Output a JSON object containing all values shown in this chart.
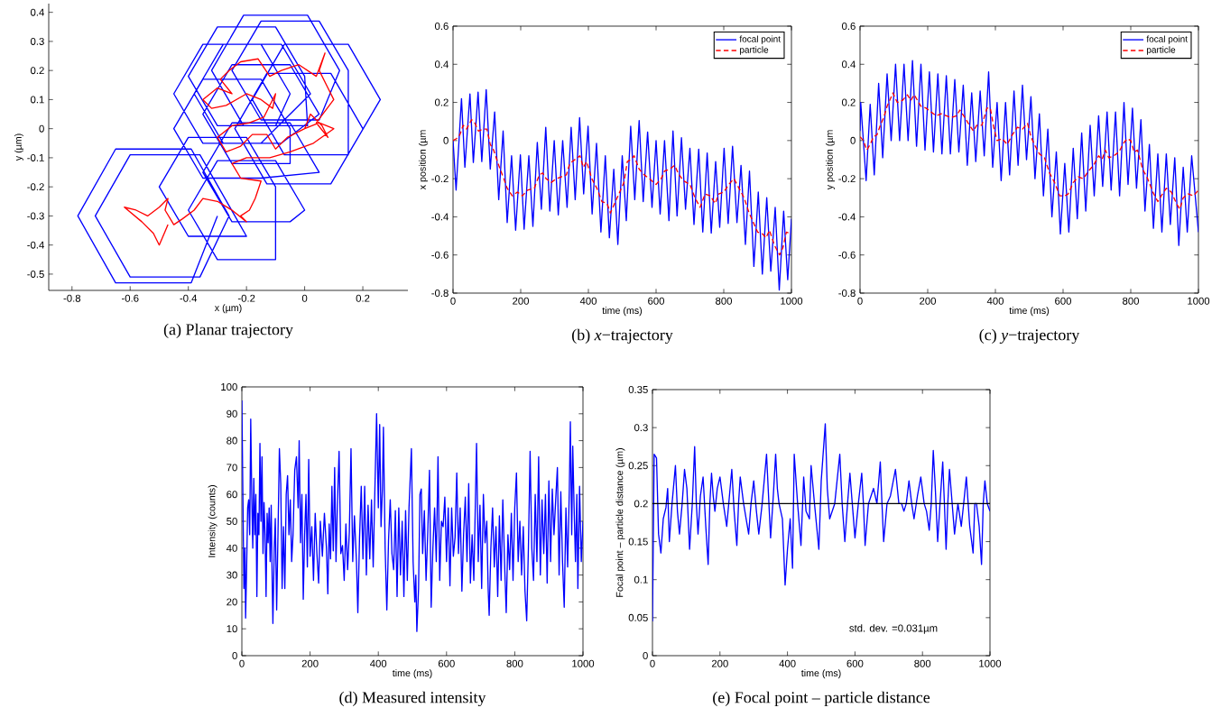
{
  "chart_data": [
    {
      "type": "line",
      "title": "(a) Planar trajectory",
      "xlabel": "x (µm)",
      "ylabel": "y (µm)",
      "xlim": [
        -0.88,
        0.355
      ],
      "ylim": [
        -0.556,
        0.43
      ],
      "xticks": [
        -0.8,
        -0.6,
        -0.4,
        -0.2,
        0,
        0.2
      ],
      "yticks": [
        -0.5,
        -0.4,
        -0.3,
        -0.2,
        -0.1,
        0,
        0.1,
        0.2,
        0.3,
        0.4
      ],
      "series": [
        {
          "color": "#0000ff",
          "x": [
            0.2,
            0.09,
            -0.13,
            -0.24,
            -0.13,
            0.09,
            0.26,
            0.15,
            -0.07,
            -0.18,
            -0.07,
            0.15,
            0.15,
            0.05,
            -0.15,
            -0.25,
            -0.15,
            0.05,
            0.12,
            0.01,
            -0.21,
            -0.32,
            -0.21,
            0.01,
            0,
            -0.1,
            -0.3,
            -0.4,
            -0.3,
            -0.1,
            -0.05,
            -0.15,
            -0.35,
            -0.45,
            -0.35,
            -0.15,
            0.02,
            -0.08,
            -0.28,
            -0.38,
            -0.28,
            -0.08,
            0.05,
            -0.05,
            -0.25,
            -0.35,
            -0.25,
            -0.05,
            -0.05,
            -0.15,
            -0.35,
            -0.45,
            -0.35,
            -0.15,
            0.05,
            -0.05,
            -0.25,
            -0.35,
            -0.25,
            -0.05,
            0,
            -0.1,
            -0.3,
            -0.4,
            -0.3,
            -0.1,
            -0.1,
            -0.2,
            -0.4,
            -0.5,
            -0.4,
            -0.2,
            -0.24,
            -0.36,
            -0.6,
            -0.72,
            -0.6,
            -0.36,
            -0.26,
            -0.39,
            -0.65,
            -0.78,
            -0.65,
            -0.39,
            -0.3
          ],
          "values": [
            0,
            0.19,
            0.19,
            0,
            -0.19,
            -0.19,
            0.1,
            0.29,
            0.29,
            0.1,
            -0.09,
            -0.09,
            0.2,
            0.37,
            0.37,
            0.2,
            0.03,
            0.03,
            0.2,
            0.39,
            0.39,
            0.2,
            0.01,
            0.01,
            0.18,
            0.35,
            0.35,
            0.18,
            0.01,
            0.01,
            0.12,
            0.29,
            0.29,
            0.12,
            -0.05,
            -0.05,
            0.12,
            0.29,
            0.29,
            0.12,
            -0.05,
            -0.05,
            0.05,
            0.22,
            0.22,
            0.05,
            -0.12,
            -0.12,
            0,
            0.17,
            0.17,
            0,
            -0.17,
            -0.17,
            -0.15,
            0.02,
            0.02,
            -0.15,
            -0.32,
            -0.32,
            -0.28,
            -0.11,
            -0.11,
            -0.28,
            -0.45,
            -0.45,
            -0.2,
            -0.03,
            -0.03,
            -0.2,
            -0.37,
            -0.37,
            -0.3,
            -0.09,
            -0.09,
            -0.3,
            -0.51,
            -0.51,
            -0.3,
            -0.07,
            -0.07,
            -0.3,
            -0.53,
            -0.53,
            -0.3
          ]
        },
        {
          "color": "#ff0000",
          "x": [
            0,
            0.02,
            0.06,
            0.08,
            0.04,
            0.1,
            0.08,
            0.05,
            0.07,
            0.04,
            -0.02,
            -0.08,
            -0.12,
            -0.16,
            -0.22,
            -0.26,
            -0.29,
            -0.25,
            -0.3,
            -0.35,
            -0.32,
            -0.27,
            -0.2,
            -0.15,
            -0.11,
            -0.1,
            -0.14,
            -0.19,
            -0.25,
            -0.3,
            -0.27,
            -0.22,
            -0.18,
            -0.13,
            -0.1,
            -0.06,
            0,
            0.05,
            0.1,
            0.03,
            -0.05,
            -0.12,
            -0.2,
            -0.25,
            -0.22,
            -0.15,
            -0.17,
            -0.19,
            -0.22,
            -0.2,
            -0.25,
            -0.3,
            -0.35,
            -0.38,
            -0.42,
            -0.45,
            -0.48,
            -0.47,
            -0.5,
            -0.54,
            -0.58,
            -0.62,
            -0.56,
            -0.52,
            -0.5,
            -0.47
          ],
          "values": [
            0,
            0.05,
            0.01,
            -0.03,
            0.02,
            0.1,
            0.14,
            0.2,
            0.26,
            0.18,
            0.22,
            0.2,
            0.18,
            0.24,
            0.23,
            0.2,
            0.17,
            0.12,
            0.14,
            0.1,
            0.07,
            0.08,
            0.12,
            0.1,
            0.07,
            0.12,
            0.04,
            0.02,
            0.01,
            -0.03,
            -0.08,
            -0.06,
            -0.02,
            -0.02,
            -0.07,
            -0.03,
            0,
            0.02,
            0,
            -0.05,
            -0.08,
            -0.1,
            -0.1,
            -0.12,
            -0.17,
            -0.18,
            -0.24,
            -0.28,
            -0.3,
            -0.32,
            -0.28,
            -0.25,
            -0.24,
            -0.28,
            -0.31,
            -0.33,
            -0.28,
            -0.24,
            -0.27,
            -0.3,
            -0.28,
            -0.27,
            -0.32,
            -0.36,
            -0.4,
            -0.33
          ]
        }
      ]
    },
    {
      "type": "line",
      "title": "(b) *x*−trajectory",
      "xlabel": "time (ms)",
      "ylabel": "x position (µm",
      "xlim": [
        0,
        1000
      ],
      "ylim": [
        -0.8,
        0.6
      ],
      "xticks": [
        0,
        200,
        400,
        600,
        800,
        1000
      ],
      "yticks": [
        -0.8,
        -0.6,
        -0.4,
        -0.2,
        0,
        0.2,
        0.4,
        0.6
      ],
      "legend": "top right",
      "series": [
        {
          "name": "focal point",
          "color": "#0000ff",
          "line_style": "solid",
          "x": [
            0,
            9,
            25,
            35,
            50,
            60,
            74,
            85,
            98,
            110,
            123,
            135,
            148,
            160,
            173,
            185,
            199,
            210,
            224,
            236,
            249,
            261,
            274,
            286,
            299,
            311,
            324,
            337,
            349,
            361,
            374,
            386,
            399,
            411,
            424,
            437,
            450,
            462,
            475,
            487,
            500,
            512,
            525,
            537,
            550,
            562,
            575,
            588,
            600,
            612,
            625,
            638,
            650,
            662,
            675,
            687,
            700,
            712,
            726,
            738,
            751,
            763,
            776,
            788,
            801,
            813,
            826,
            839,
            851,
            864,
            876,
            889,
            902,
            914,
            927,
            939,
            952,
            964,
            977,
            989,
            1000
          ],
          "values": [
            0,
            -0.26,
            0.22,
            -0.14,
            0.245,
            -0.115,
            0.254,
            -0.11,
            0.267,
            -0.15,
            0.15,
            -0.31,
            0.05,
            -0.43,
            -0.08,
            -0.47,
            -0.075,
            -0.465,
            -0.08,
            -0.45,
            -0.01,
            -0.36,
            0.07,
            -0.37,
            0,
            -0.39,
            0,
            -0.35,
            0.07,
            -0.31,
            0.12,
            -0.28,
            0.075,
            -0.385,
            -0.015,
            -0.48,
            -0.08,
            -0.51,
            -0.15,
            -0.545,
            -0.08,
            -0.42,
            0.075,
            -0.31,
            0.105,
            -0.32,
            0.045,
            -0.35,
            0,
            -0.385,
            0,
            -0.42,
            0.05,
            -0.395,
            0.015,
            -0.36,
            -0.04,
            -0.44,
            -0.045,
            -0.48,
            -0.065,
            -0.485,
            -0.11,
            -0.455,
            -0.04,
            -0.435,
            -0.03,
            -0.43,
            -0.13,
            -0.545,
            -0.16,
            -0.66,
            -0.27,
            -0.7,
            -0.3,
            -0.685,
            -0.35,
            -0.785,
            -0.37,
            -0.73,
            -0.41
          ]
        },
        {
          "name": "particle",
          "color": "#ff0000",
          "line_style": "dashed",
          "x": [
            0,
            10,
            20,
            30,
            40,
            55,
            65,
            75,
            90,
            100,
            110,
            120,
            135,
            150,
            160,
            175,
            190,
            205,
            220,
            240,
            255,
            265,
            275,
            290,
            305,
            320,
            335,
            345,
            360,
            375,
            385,
            395,
            410,
            425,
            440,
            455,
            465,
            475,
            490,
            505,
            515,
            525,
            535,
            550,
            565,
            580,
            600,
            615,
            625,
            640,
            655,
            665,
            680,
            700,
            715,
            730,
            745,
            760,
            775,
            785,
            800,
            815,
            830,
            845,
            860,
            875,
            885,
            900,
            915,
            925,
            935,
            950,
            965,
            975,
            985,
            1000
          ],
          "values": [
            0,
            0.01,
            0.03,
            0.08,
            0.06,
            0.11,
            0.09,
            0.05,
            0.06,
            0.06,
            -0.02,
            -0.05,
            -0.13,
            -0.2,
            -0.25,
            -0.29,
            -0.27,
            -0.29,
            -0.26,
            -0.25,
            -0.18,
            -0.17,
            -0.2,
            -0.22,
            -0.2,
            -0.19,
            -0.18,
            -0.12,
            -0.1,
            -0.08,
            -0.14,
            -0.11,
            -0.2,
            -0.25,
            -0.32,
            -0.33,
            -0.38,
            -0.34,
            -0.28,
            -0.22,
            -0.11,
            -0.1,
            -0.08,
            -0.15,
            -0.18,
            -0.2,
            -0.23,
            -0.2,
            -0.16,
            -0.15,
            -0.13,
            -0.17,
            -0.21,
            -0.23,
            -0.3,
            -0.35,
            -0.28,
            -0.29,
            -0.33,
            -0.28,
            -0.27,
            -0.23,
            -0.2,
            -0.25,
            -0.3,
            -0.38,
            -0.42,
            -0.48,
            -0.49,
            -0.51,
            -0.47,
            -0.55,
            -0.6,
            -0.56,
            -0.48,
            -0.49
          ]
        }
      ]
    },
    {
      "type": "line",
      "title": "(c) *y*−trajectory",
      "xlabel": "time (ms)",
      "ylabel": "y position (µm",
      "xlim": [
        0,
        1000
      ],
      "ylim": [
        -0.8,
        0.6
      ],
      "xticks": [
        0,
        200,
        400,
        600,
        800,
        1000
      ],
      "yticks": [
        -0.8,
        -0.6,
        -0.4,
        -0.2,
        0,
        0.2,
        0.4,
        0.6
      ],
      "legend": "top right",
      "series": [
        {
          "name": "focal point",
          "color": "#0000ff",
          "line_style": "solid",
          "x": [
            0,
            2,
            18,
            30,
            42,
            55,
            67,
            80,
            92,
            105,
            117,
            130,
            142,
            155,
            167,
            180,
            192,
            205,
            217,
            230,
            242,
            255,
            267,
            280,
            292,
            305,
            317,
            330,
            342,
            355,
            367,
            380,
            392,
            405,
            417,
            430,
            442,
            455,
            467,
            480,
            492,
            505,
            517,
            530,
            542,
            555,
            567,
            580,
            592,
            605,
            617,
            630,
            642,
            655,
            667,
            680,
            692,
            705,
            717,
            730,
            742,
            755,
            767,
            780,
            792,
            805,
            817,
            830,
            842,
            855,
            867,
            880,
            892,
            905,
            917,
            930,
            942,
            955,
            967,
            980,
            1000
          ],
          "values": [
            0.05,
            0.2,
            -0.21,
            0.19,
            -0.18,
            0.3,
            -0.09,
            0.35,
            0,
            0.4,
            0,
            0.4,
            0,
            0.42,
            -0.03,
            0.4,
            -0.05,
            0.36,
            -0.06,
            0.35,
            -0.07,
            0.34,
            -0.07,
            0.32,
            -0.06,
            0.29,
            -0.13,
            0.25,
            -0.11,
            0.26,
            -0.08,
            0.36,
            -0.14,
            0.2,
            -0.21,
            0.2,
            -0.18,
            0.26,
            -0.13,
            0.29,
            -0.1,
            0.23,
            -0.2,
            0.14,
            -0.29,
            0.06,
            -0.4,
            -0.06,
            -0.49,
            -0.12,
            -0.48,
            -0.04,
            -0.41,
            0.04,
            -0.37,
            0.08,
            -0.29,
            0.13,
            -0.24,
            0.15,
            -0.26,
            0.15,
            -0.29,
            0.2,
            -0.23,
            0.17,
            -0.25,
            0.11,
            -0.37,
            -0.02,
            -0.46,
            -0.07,
            -0.48,
            -0.07,
            -0.44,
            -0.09,
            -0.55,
            -0.14,
            -0.48,
            -0.08,
            -0.48
          ]
        },
        {
          "name": "particle",
          "color": "#ff0000",
          "line_style": "dashed",
          "x": [
            0,
            10,
            20,
            30,
            40,
            50,
            60,
            70,
            80,
            90,
            97,
            110,
            125,
            140,
            150,
            160,
            170,
            180,
            195,
            210,
            225,
            240,
            255,
            270,
            285,
            295,
            310,
            320,
            335,
            345,
            360,
            375,
            385,
            395,
            405,
            420,
            435,
            450,
            465,
            480,
            495,
            505,
            515,
            530,
            545,
            560,
            575,
            590,
            605,
            615,
            630,
            645,
            660,
            675,
            690,
            705,
            715,
            725,
            735,
            750,
            765,
            780,
            790,
            800,
            810,
            820,
            835,
            850,
            865,
            880,
            890,
            905,
            920,
            935,
            945,
            955,
            970,
            985,
            1000
          ],
          "values": [
            0.02,
            0,
            -0.05,
            -0.02,
            0.02,
            0.03,
            0.08,
            0.12,
            0.18,
            0.22,
            0.25,
            0.2,
            0.21,
            0.24,
            0.21,
            0.24,
            0.21,
            0.18,
            0.17,
            0.15,
            0.13,
            0.14,
            0.13,
            0.12,
            0.13,
            0.16,
            0.12,
            0.09,
            0.05,
            0.08,
            0.08,
            0.17,
            0.17,
            0.07,
            0,
            0.01,
            -0.02,
            0.03,
            0.07,
            0.06,
            0.09,
            0.02,
            -0.02,
            -0.07,
            -0.09,
            -0.17,
            -0.22,
            -0.29,
            -0.29,
            -0.28,
            -0.22,
            -0.19,
            -0.2,
            -0.16,
            -0.13,
            -0.08,
            -0.1,
            -0.05,
            -0.09,
            -0.08,
            -0.06,
            -0.01,
            0.01,
            0,
            -0.06,
            -0.05,
            -0.15,
            -0.2,
            -0.27,
            -0.32,
            -0.29,
            -0.25,
            -0.27,
            -0.33,
            -0.36,
            -0.3,
            -0.28,
            -0.29,
            -0.26
          ]
        }
      ]
    },
    {
      "type": "line",
      "title": "(d) Measured intensity",
      "xlabel": "time (ms)",
      "ylabel": "Intensity (counts)",
      "xlim": [
        0,
        1000
      ],
      "ylim": [
        0,
        100
      ],
      "xticks": [
        0,
        200,
        400,
        600,
        800,
        1000
      ],
      "yticks": [
        0,
        10,
        20,
        30,
        40,
        50,
        60,
        70,
        80,
        90,
        100
      ],
      "series": [
        {
          "color": "#0000ff",
          "x": [
            0,
            3,
            6,
            9,
            11,
            14,
            17,
            20,
            23,
            26,
            29,
            32,
            35,
            38,
            41,
            44,
            47,
            50,
            53,
            56,
            59,
            62,
            65,
            68,
            71,
            74,
            77,
            80,
            83,
            86,
            89,
            91,
            95,
            98,
            102,
            106,
            110,
            114,
            118,
            122,
            126,
            130,
            134,
            138,
            142,
            146,
            150,
            155,
            160,
            165,
            168,
            172,
            176,
            180,
            184,
            188,
            192,
            196,
            200,
            205,
            210,
            215,
            220,
            225,
            230,
            236,
            242,
            248,
            252,
            256,
            260,
            264,
            268,
            272,
            276,
            280,
            285,
            290,
            295,
            300,
            305,
            310,
            315,
            320,
            325,
            330,
            336,
            340,
            345,
            350,
            355,
            360,
            365,
            370,
            375,
            380,
            385,
            390,
            395,
            400,
            404,
            408,
            412,
            415,
            420,
            425,
            430,
            435,
            440,
            445,
            450,
            455,
            460,
            465,
            470,
            475,
            480,
            485,
            490,
            497,
            502,
            507,
            510,
            513,
            518,
            522,
            526,
            530,
            535,
            540,
            545,
            550,
            555,
            560,
            565,
            570,
            575,
            580,
            585,
            590,
            595,
            600,
            605,
            610,
            615,
            620,
            625,
            630,
            635,
            640,
            645,
            650,
            655,
            660,
            665,
            670,
            675,
            680,
            688,
            693,
            698,
            703,
            708,
            713,
            718,
            722,
            725,
            730,
            735,
            740,
            745,
            750,
            755,
            760,
            765,
            770,
            775,
            780,
            785,
            790,
            795,
            800,
            805,
            810,
            815,
            820,
            825,
            830,
            835,
            840,
            845,
            850,
            855,
            860,
            865,
            870,
            875,
            880,
            885,
            890,
            895,
            900,
            905,
            910,
            915,
            920,
            925,
            930,
            935,
            940,
            945,
            950,
            955,
            960,
            963,
            967,
            970,
            974,
            978,
            982,
            985,
            990,
            995,
            1000
          ],
          "values": [
            95,
            60,
            25,
            40,
            14,
            33,
            55,
            58,
            45,
            88,
            60,
            40,
            66,
            45,
            60,
            22,
            53,
            45,
            79,
            50,
            74,
            38,
            57,
            45,
            22,
            53,
            42,
            55,
            35,
            56,
            27,
            12,
            40,
            51,
            17,
            46,
            77,
            64,
            25,
            48,
            25,
            60,
            67,
            45,
            58,
            35,
            45,
            69,
            74,
            55,
            80,
            42,
            60,
            21,
            45,
            60,
            33,
            73,
            37,
            48,
            28,
            53,
            38,
            27,
            50,
            37,
            53,
            40,
            23,
            49,
            36,
            63,
            39,
            70,
            35,
            56,
            76,
            38,
            41,
            28,
            49,
            32,
            46,
            77,
            35,
            52,
            35,
            16,
            44,
            63,
            36,
            63,
            30,
            56,
            36,
            58,
            33,
            62,
            90,
            55,
            86,
            48,
            62,
            85,
            40,
            17,
            43,
            58,
            38,
            32,
            54,
            22,
            55,
            30,
            50,
            22,
            54,
            28,
            55,
            77,
            35,
            20,
            30,
            9,
            25,
            60,
            62,
            38,
            54,
            28,
            46,
            69,
            18,
            40,
            55,
            35,
            74,
            28,
            50,
            48,
            59,
            35,
            55,
            26,
            55,
            37,
            44,
            68,
            38,
            55,
            24,
            45,
            59,
            35,
            64,
            27,
            45,
            28,
            79,
            35,
            56,
            25,
            60,
            42,
            50,
            25,
            15,
            40,
            55,
            33,
            48,
            22,
            52,
            28,
            58,
            35,
            16,
            45,
            32,
            53,
            28,
            55,
            68,
            35,
            50,
            30,
            48,
            24,
            13,
            40,
            76,
            40,
            28,
            60,
            35,
            74,
            30,
            58,
            38,
            60,
            27,
            65,
            35,
            62,
            45,
            58,
            70,
            30,
            61,
            35,
            18,
            55,
            33,
            62,
            87,
            45,
            78,
            55,
            35,
            60,
            25,
            63,
            35,
            50
          ]
        }
      ]
    },
    {
      "type": "line",
      "title": "(e) Focal point – particle distance",
      "xlabel": "time (ms)",
      "ylabel": "Focal point – particle distance (µm)",
      "xlim": [
        0,
        1000
      ],
      "ylim": [
        0,
        0.35
      ],
      "xticks": [
        0,
        200,
        400,
        600,
        800,
        1000
      ],
      "yticks": [
        0,
        0.05,
        0.1,
        0.15,
        0.2,
        0.25,
        0.3,
        0.35
      ],
      "annotations": [
        "std. dev. =0.031µm"
      ],
      "ref_lines": [
        {
          "axis": "y",
          "value": 0.2,
          "color": "#000000"
        }
      ],
      "series": [
        {
          "color": "#0000ff",
          "x": [
            0,
            5,
            12,
            18,
            25,
            32,
            40,
            45,
            50,
            58,
            68,
            74,
            80,
            88,
            95,
            102,
            110,
            118,
            125,
            130,
            135,
            142,
            150,
            158,
            165,
            170,
            175,
            180,
            185,
            192,
            200,
            210,
            220,
            228,
            235,
            242,
            250,
            255,
            260,
            270,
            285,
            292,
            300,
            308,
            315,
            325,
            338,
            345,
            350,
            358,
            365,
            370,
            375,
            385,
            393,
            400,
            408,
            415,
            420,
            430,
            440,
            448,
            455,
            465,
            470,
            480,
            493,
            500,
            512,
            518,
            525,
            540,
            555,
            562,
            570,
            578,
            585,
            592,
            600,
            610,
            620,
            625,
            630,
            640,
            655,
            665,
            675,
            680,
            685,
            695,
            705,
            720,
            730,
            738,
            745,
            752,
            760,
            768,
            775,
            785,
            795,
            805,
            812,
            820,
            826,
            832,
            838,
            845,
            852,
            860,
            865,
            870,
            875,
            880,
            888,
            895,
            905,
            915,
            922,
            930,
            940,
            950,
            955,
            960,
            968,
            975,
            980,
            985,
            992,
            1000
          ],
          "values": [
            0.045,
            0.265,
            0.26,
            0.16,
            0.135,
            0.18,
            0.195,
            0.22,
            0.15,
            0.2,
            0.25,
            0.19,
            0.16,
            0.2,
            0.245,
            0.22,
            0.14,
            0.2,
            0.275,
            0.2,
            0.16,
            0.21,
            0.235,
            0.17,
            0.12,
            0.2,
            0.24,
            0.21,
            0.19,
            0.22,
            0.235,
            0.2,
            0.17,
            0.21,
            0.245,
            0.19,
            0.145,
            0.2,
            0.235,
            0.2,
            0.16,
            0.2,
            0.23,
            0.19,
            0.16,
            0.2,
            0.265,
            0.2,
            0.155,
            0.21,
            0.265,
            0.22,
            0.2,
            0.18,
            0.093,
            0.14,
            0.18,
            0.115,
            0.265,
            0.2,
            0.145,
            0.235,
            0.19,
            0.18,
            0.25,
            0.2,
            0.14,
            0.23,
            0.305,
            0.22,
            0.18,
            0.2,
            0.265,
            0.2,
            0.15,
            0.2,
            0.24,
            0.2,
            0.155,
            0.2,
            0.24,
            0.2,
            0.145,
            0.2,
            0.22,
            0.2,
            0.255,
            0.2,
            0.15,
            0.2,
            0.21,
            0.245,
            0.2,
            0.2,
            0.19,
            0.2,
            0.23,
            0.2,
            0.18,
            0.21,
            0.235,
            0.2,
            0.19,
            0.165,
            0.2,
            0.27,
            0.22,
            0.15,
            0.2,
            0.255,
            0.2,
            0.14,
            0.2,
            0.245,
            0.2,
            0.16,
            0.2,
            0.17,
            0.2,
            0.235,
            0.17,
            0.135,
            0.2,
            0.2,
            0.17,
            0.12,
            0.2,
            0.23,
            0.2,
            0.19
          ]
        }
      ]
    }
  ]
}
